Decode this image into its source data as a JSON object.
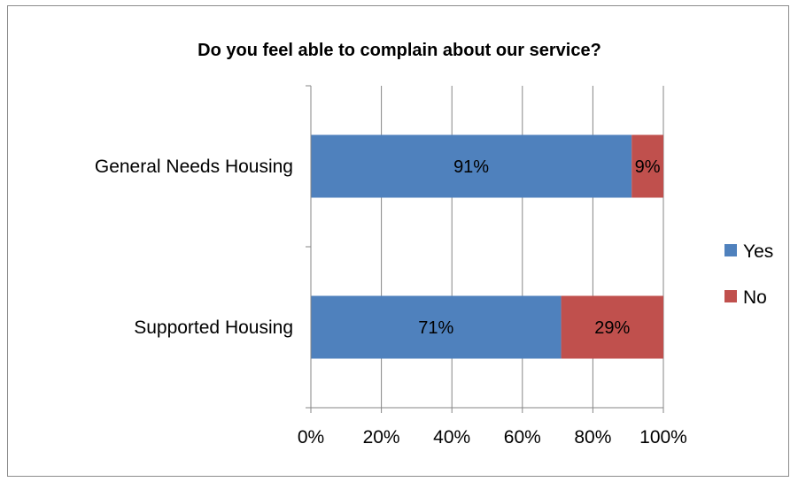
{
  "chart_data": {
    "type": "bar",
    "orientation": "horizontal",
    "stacked": "percent",
    "title": "Do you feel able to complain about our service?",
    "categories": [
      "General Needs Housing",
      "Supported Housing"
    ],
    "series": [
      {
        "name": "Yes",
        "values": [
          91,
          71
        ],
        "labels": [
          "91%",
          "71%"
        ],
        "color": "#4f81bd"
      },
      {
        "name": "No",
        "values": [
          9,
          29
        ],
        "labels": [
          "9%",
          "29%"
        ],
        "color": "#c0504d"
      }
    ],
    "xlim": [
      0,
      100
    ],
    "xticks": [
      0,
      20,
      40,
      60,
      80,
      100
    ],
    "xtick_labels": [
      "0%",
      "20%",
      "40%",
      "60%",
      "80%",
      "100%"
    ],
    "grid": "vertical",
    "legend_position": "right"
  }
}
